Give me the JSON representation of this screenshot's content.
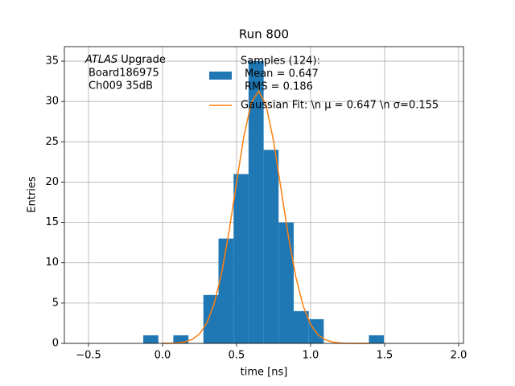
{
  "chart_data": {
    "type": "histogram",
    "title": "Run 800",
    "xlabel": "time [ns]",
    "ylabel": "Entries",
    "annotation": {
      "emphasis": "ATLAS",
      "text": "Upgrade",
      "lines": [
        "Board186975",
        "Ch009 35dB"
      ]
    },
    "bins": [
      -0.13,
      -0.028,
      0.073,
      0.175,
      0.276,
      0.378,
      0.48,
      0.581,
      0.683,
      0.784,
      0.886,
      0.988,
      1.089,
      1.191,
      1.292,
      1.394,
      1.495
    ],
    "values": [
      1,
      0,
      1,
      0,
      6,
      13,
      21,
      35,
      24,
      15,
      4,
      3,
      0,
      0,
      0,
      1
    ],
    "name": [
      "Samples (124):",
      "Mean = 0.647",
      "RMS = 0.186"
    ],
    "color": "#1f77b4",
    "fit": {
      "type": "line",
      "name": "Gaussian Fit: \\n μ = 0.647 \\n σ=0.155",
      "color": "#ff7f0e",
      "x": [
        0,
        0.05,
        0.1,
        0.15,
        0.2,
        0.25,
        0.3,
        0.35,
        0.4,
        0.45,
        0.5,
        0.55,
        0.6,
        0.65,
        0.7,
        0.75,
        0.8,
        0.85,
        0.9,
        0.95,
        1.0,
        1.05,
        1.1,
        1.15,
        1.2,
        1.25,
        1.3,
        1.35,
        1.4
      ],
      "values": [
        0.005,
        0.019,
        0.062,
        0.18,
        0.49,
        1.18,
        2.55,
        4.99,
        8.79,
        13.95,
        19.96,
        25.73,
        29.9,
        31.3,
        29.5,
        25.1,
        19.2,
        13.3,
        8.26,
        4.63,
        2.34,
        1.06,
        0.44,
        0.16,
        0.054,
        0.016,
        0.004,
        0.001,
        0.0
      ]
    },
    "xlim": [
      -0.663,
      2.033
    ],
    "ylim": [
      0,
      36.8
    ],
    "xticks": [
      {
        "value": -0.5,
        "label": "−0.5"
      },
      {
        "value": 0,
        "label": "0.0"
      },
      {
        "value": 0.5,
        "label": "0.5"
      },
      {
        "value": 1,
        "label": "1.0"
      },
      {
        "value": 1.5,
        "label": "1.5"
      },
      {
        "value": 2,
        "label": "2.0"
      }
    ],
    "yticks": [
      0,
      5,
      10,
      15,
      20,
      25,
      30,
      35
    ],
    "grid": true
  }
}
